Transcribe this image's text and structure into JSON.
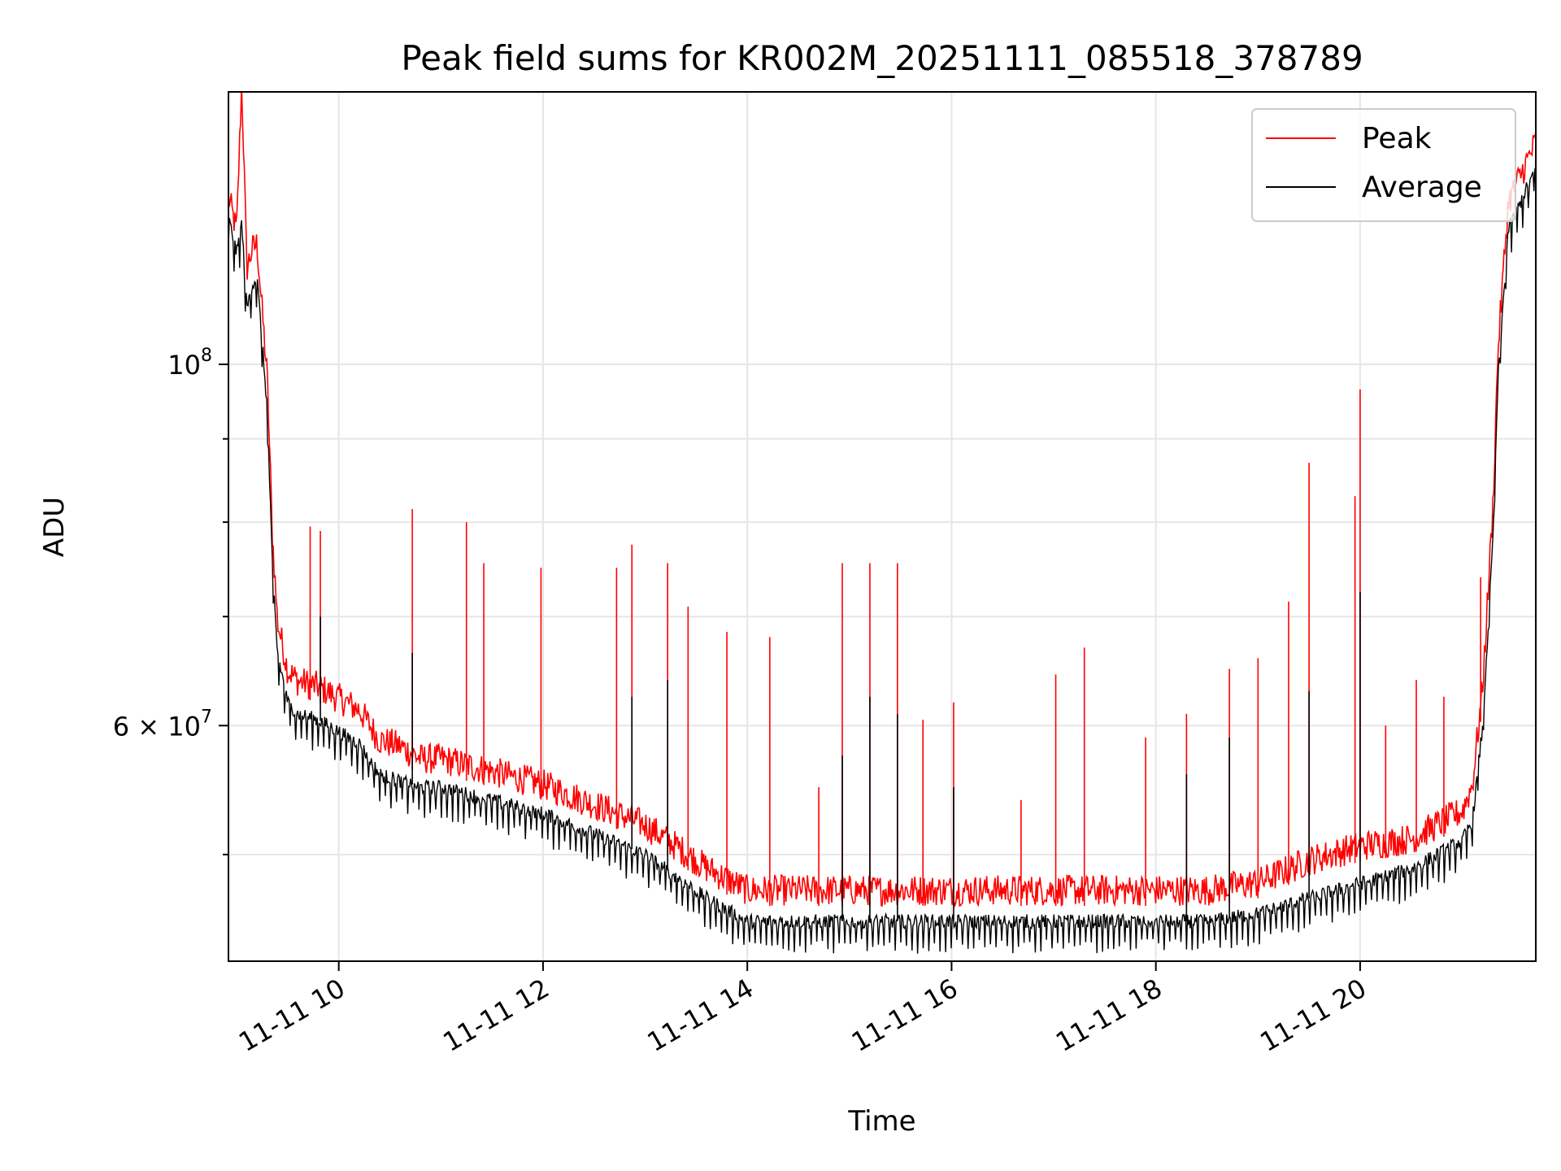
{
  "chart_data": {
    "type": "line",
    "title": "Peak field sums for KR002M_20251111_085518_378789",
    "xlabel": "Time",
    "ylabel": "ADU",
    "yscale": "log",
    "xlim": [
      8.92,
      21.72
    ],
    "ylim": [
      43000000,
      147000000
    ],
    "xticks": [
      {
        "value": 10,
        "label": "11-11 10"
      },
      {
        "value": 12,
        "label": "11-11 12"
      },
      {
        "value": 14,
        "label": "11-11 14"
      },
      {
        "value": 16,
        "label": "11-11 16"
      },
      {
        "value": 18,
        "label": "11-11 18"
      },
      {
        "value": 20,
        "label": "11-11 20"
      }
    ],
    "yticks_major": [
      {
        "value": 100000000,
        "base": "10",
        "exp": "8",
        "coef": ""
      },
      {
        "value": 60000000,
        "base": "10",
        "exp": "7",
        "coef": "6 × "
      }
    ],
    "yticks_minor": [
      50000000,
      70000000,
      80000000,
      90000000,
      200000000
    ],
    "grid": true,
    "legend_position": "upper right",
    "legend": [
      {
        "name": "Peak",
        "color": "#ff0000"
      },
      {
        "name": "Average",
        "color": "#000000"
      }
    ],
    "series": [
      {
        "name": "Peak",
        "color": "#ff0000",
        "x": [
          8.92,
          9.0,
          9.05,
          9.1,
          9.15,
          9.2,
          9.3,
          9.35,
          9.4,
          9.5,
          9.6,
          9.8,
          10.0,
          10.2,
          10.4,
          10.6,
          10.8,
          11.0,
          11.5,
          12.0,
          12.5,
          13.0,
          13.3,
          13.6,
          14.0,
          14.5,
          15.0,
          16.0,
          17.0,
          18.0,
          18.5,
          19.0,
          19.5,
          20.0,
          20.5,
          21.0,
          21.1,
          21.2,
          21.3,
          21.35,
          21.45,
          21.55,
          21.65,
          21.72
        ],
        "values": [
          124000000,
          118000000,
          146000000,
          112000000,
          115000000,
          116000000,
          96000000,
          77000000,
          68000000,
          63500000,
          62500000,
          62000000,
          61000000,
          60000000,
          57500000,
          57000000,
          56000000,
          56000000,
          55000000,
          54000000,
          52500000,
          51000000,
          49500000,
          48000000,
          46500000,
          46500000,
          46500000,
          46500000,
          46500000,
          46500000,
          46500000,
          47000000,
          48500000,
          49500000,
          50000000,
          52000000,
          54000000,
          62000000,
          80000000,
          100000000,
          123000000,
          127000000,
          131000000,
          134000000
        ],
        "spikes": [
          {
            "x": 9.72,
            "value": 79500000
          },
          {
            "x": 9.82,
            "value": 79000000
          },
          {
            "x": 10.72,
            "value": 81500000
          },
          {
            "x": 11.25,
            "value": 80000000
          },
          {
            "x": 11.42,
            "value": 75500000
          },
          {
            "x": 11.98,
            "value": 75000000
          },
          {
            "x": 12.72,
            "value": 75000000
          },
          {
            "x": 12.87,
            "value": 77500000
          },
          {
            "x": 13.22,
            "value": 75500000
          },
          {
            "x": 13.42,
            "value": 71000000
          },
          {
            "x": 13.8,
            "value": 68500000
          },
          {
            "x": 14.22,
            "value": 68000000
          },
          {
            "x": 14.7,
            "value": 55000000
          },
          {
            "x": 14.93,
            "value": 75500000
          },
          {
            "x": 15.2,
            "value": 75500000
          },
          {
            "x": 15.47,
            "value": 75500000
          },
          {
            "x": 15.72,
            "value": 60500000
          },
          {
            "x": 16.02,
            "value": 62000000
          },
          {
            "x": 16.68,
            "value": 54000000
          },
          {
            "x": 17.02,
            "value": 64500000
          },
          {
            "x": 17.3,
            "value": 67000000
          },
          {
            "x": 17.9,
            "value": 59000000
          },
          {
            "x": 18.3,
            "value": 61000000
          },
          {
            "x": 18.72,
            "value": 65000000
          },
          {
            "x": 19.0,
            "value": 66000000
          },
          {
            "x": 19.3,
            "value": 71500000
          },
          {
            "x": 19.5,
            "value": 87000000
          },
          {
            "x": 19.95,
            "value": 83000000
          },
          {
            "x": 20.0,
            "value": 96500000
          },
          {
            "x": 20.25,
            "value": 60000000
          },
          {
            "x": 20.55,
            "value": 64000000
          },
          {
            "x": 20.82,
            "value": 62500000
          },
          {
            "x": 21.18,
            "value": 74000000
          }
        ]
      },
      {
        "name": "Average",
        "color": "#000000",
        "x": [
          8.92,
          9.0,
          9.05,
          9.1,
          9.15,
          9.2,
          9.3,
          9.35,
          9.4,
          9.5,
          9.6,
          9.8,
          10.0,
          10.2,
          10.4,
          10.6,
          10.8,
          11.0,
          11.5,
          12.0,
          12.5,
          13.0,
          13.3,
          13.6,
          14.0,
          14.5,
          15.0,
          16.0,
          17.0,
          18.0,
          18.5,
          19.0,
          19.5,
          20.0,
          20.5,
          21.0,
          21.1,
          21.2,
          21.3,
          21.35,
          21.45,
          21.55,
          21.65,
          21.72
        ],
        "values": [
          123000000,
          117000000,
          122000000,
          108000000,
          112000000,
          113000000,
          94000000,
          75000000,
          66500000,
          62000000,
          61000000,
          60500000,
          59500000,
          58500000,
          56000000,
          55500000,
          55000000,
          55000000,
          54000000,
          53000000,
          51500000,
          50000000,
          48500000,
          47000000,
          45500000,
          45500000,
          45500000,
          45500000,
          45500000,
          45500000,
          45500000,
          46000000,
          47000000,
          48000000,
          49000000,
          51000000,
          52500000,
          60000000,
          78000000,
          98000000,
          121000000,
          125000000,
          129000000,
          132000000
        ],
        "spikes": [
          {
            "x": 9.82,
            "value": 70000000
          },
          {
            "x": 10.72,
            "value": 66500000
          },
          {
            "x": 12.87,
            "value": 62500000
          },
          {
            "x": 13.22,
            "value": 64000000
          },
          {
            "x": 14.93,
            "value": 57500000
          },
          {
            "x": 15.2,
            "value": 62500000
          },
          {
            "x": 15.47,
            "value": 61000000
          },
          {
            "x": 16.02,
            "value": 55000000
          },
          {
            "x": 18.3,
            "value": 56000000
          },
          {
            "x": 18.72,
            "value": 59000000
          },
          {
            "x": 19.5,
            "value": 63000000
          },
          {
            "x": 20.0,
            "value": 72500000
          }
        ]
      }
    ]
  }
}
